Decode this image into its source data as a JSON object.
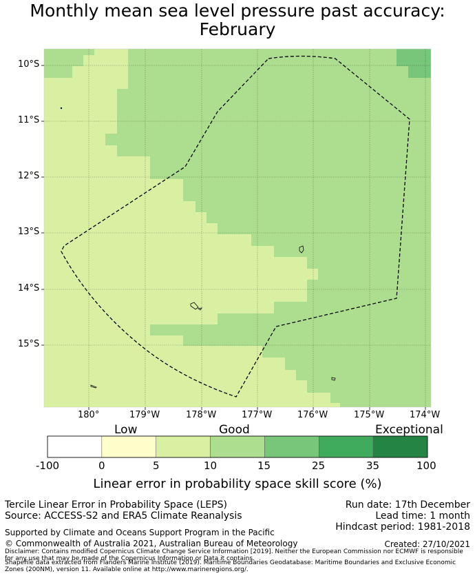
{
  "title": {
    "line1": "Monthly mean sea level pressure past accuracy:",
    "line2": "February"
  },
  "map": {
    "lat_labels": [
      "10°S",
      "11°S",
      "12°S",
      "13°S",
      "14°S",
      "15°S"
    ],
    "lon_labels": [
      "180°",
      "179°W",
      "178°W",
      "177°W",
      "176°W",
      "175°W",
      "174°W"
    ]
  },
  "colorbar": {
    "categories": [
      "Low",
      "Good",
      "Exceptional"
    ],
    "ticks": [
      "-100",
      "0",
      "5",
      "10",
      "15",
      "25",
      "35",
      "100"
    ],
    "colors": [
      "#ffffff",
      "#ffffcc",
      "#d9f0a3",
      "#addd8e",
      "#78c679",
      "#41ab5d",
      "#238443"
    ],
    "title": "Linear error in probability space skill score (%)"
  },
  "info": {
    "method": "Tercile Linear Error in Probability Space (LEPS)",
    "source": "Source: ACCESS-S2 and ERA5 Climate Reanalysis",
    "run_date": "Run date: 17th December",
    "lead_time": "Lead time: 1 month",
    "hindcast": "Hindcast period: 1981-2018",
    "supported": "Supported by Climate and Oceans Support Program in the Pacific",
    "copyright": "© Commonwealth of Australia 2021, Australian Bureau of Meteorology",
    "created": "Created: 27/10/2021",
    "disclaimer1": "Disclaimer: Contains modified Copernicus Climate Change Service Information [2019]. Neither the European Commission nor ECMWF is responsible for any use that may be made of the Copernicus Information or Data it contains.",
    "disclaimer2": "Shapefile data extracted from Flanders Marine Institute (2019). Maritime Boundaries Geodatabase: Maritime Boundaries and Exclusive Economic Zones (200NM), version 11. Available online at http://www.marineregions.org/."
  },
  "skill_colors": {
    "good": "#d9f0a3",
    "better": "#addd8e",
    "best": "#78c679"
  }
}
